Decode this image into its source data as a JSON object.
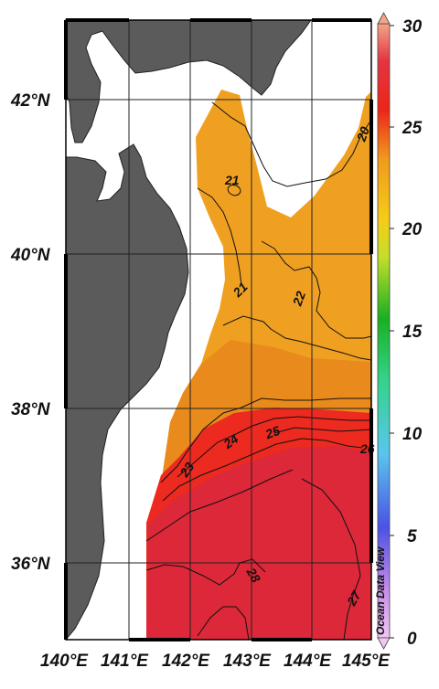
{
  "map": {
    "lat_labels": [
      "42°N",
      "40°N",
      "38°N",
      "36°N"
    ],
    "lon_labels": [
      "140°E",
      "141°E",
      "142°E",
      "143°E",
      "144°E",
      "145°E"
    ],
    "lon_range": [
      140,
      145
    ],
    "lat_range": [
      35,
      43
    ],
    "contour_labels": [
      "20",
      "21",
      "21",
      "22",
      "23",
      "24",
      "25",
      "26",
      "28",
      "27"
    ],
    "colors": {
      "land": "#5b5b5b",
      "orange": "#f0a020",
      "deep_orange": "#e67c1a",
      "red": "#e62020",
      "crimson": "#dc2838"
    }
  },
  "colorbar": {
    "ticks": [
      "30",
      "25",
      "20",
      "15",
      "10",
      "5",
      "0"
    ],
    "range": [
      0,
      30
    ]
  },
  "watermark": "Ocean Data View"
}
